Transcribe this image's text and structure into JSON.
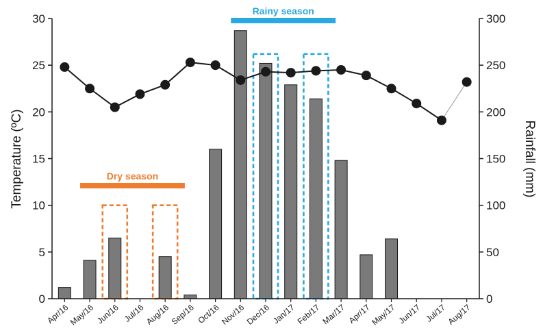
{
  "chart_data": {
    "type": "bar",
    "categories": [
      "Apr/16",
      "May/16",
      "Jun/16",
      "Jul/16",
      "Aug/16",
      "Sep/16",
      "Oct/16",
      "Nov/16",
      "Dec/16",
      "Jan/17",
      "Feb/17",
      "Mar/17",
      "Apr/17",
      "May/17",
      "Jun/17",
      "Jul/17",
      "Aug/17"
    ],
    "ylabel_left": "Temperature (ºC)",
    "ylabel_right": "Rainfall (mm)",
    "ylim_left": [
      0,
      30
    ],
    "ylim_right": [
      0,
      300
    ],
    "yticks_left": [
      "0",
      "5",
      "10",
      "15",
      "20",
      "25",
      "30"
    ],
    "yticks_right": [
      "0",
      "50",
      "100",
      "150",
      "200",
      "250",
      "300"
    ],
    "grid": false,
    "series": [
      {
        "name": "Rainfall",
        "kind": "bar",
        "axis": "right",
        "color": "#7a7a7a",
        "values": [
          12,
          41,
          65,
          0,
          45,
          4,
          160,
          287,
          252,
          229,
          214,
          148,
          47,
          64,
          0,
          0,
          0
        ]
      },
      {
        "name": "Temperature",
        "kind": "line",
        "axis": "left",
        "color": "#1a1a1a",
        "values": [
          24.8,
          22.5,
          20.5,
          21.9,
          22.9,
          25.3,
          25.0,
          23.4,
          24.3,
          24.2,
          24.4,
          24.5,
          23.9,
          22.5,
          20.9,
          19.1,
          23.2
        ]
      }
    ],
    "season_bands": [
      {
        "label": "Rainy season",
        "color": "#2aa8e0",
        "from": "Nov/16",
        "to": "Mar/17"
      },
      {
        "label": "Dry season",
        "color": "#ef7d2f",
        "from": "May/16",
        "to": "Sep/16"
      }
    ],
    "highlight_boxes": [
      {
        "category": "Jun/16",
        "color": "#ef7d2f",
        "top_value": 10
      },
      {
        "category": "Aug/16",
        "color": "#ef7d2f",
        "top_value": 10
      },
      {
        "category": "Dec/16",
        "color": "#2aa8e0",
        "top_value": 26.2
      },
      {
        "category": "Feb/17",
        "color": "#2aa8e0",
        "top_value": 26.2
      }
    ]
  }
}
